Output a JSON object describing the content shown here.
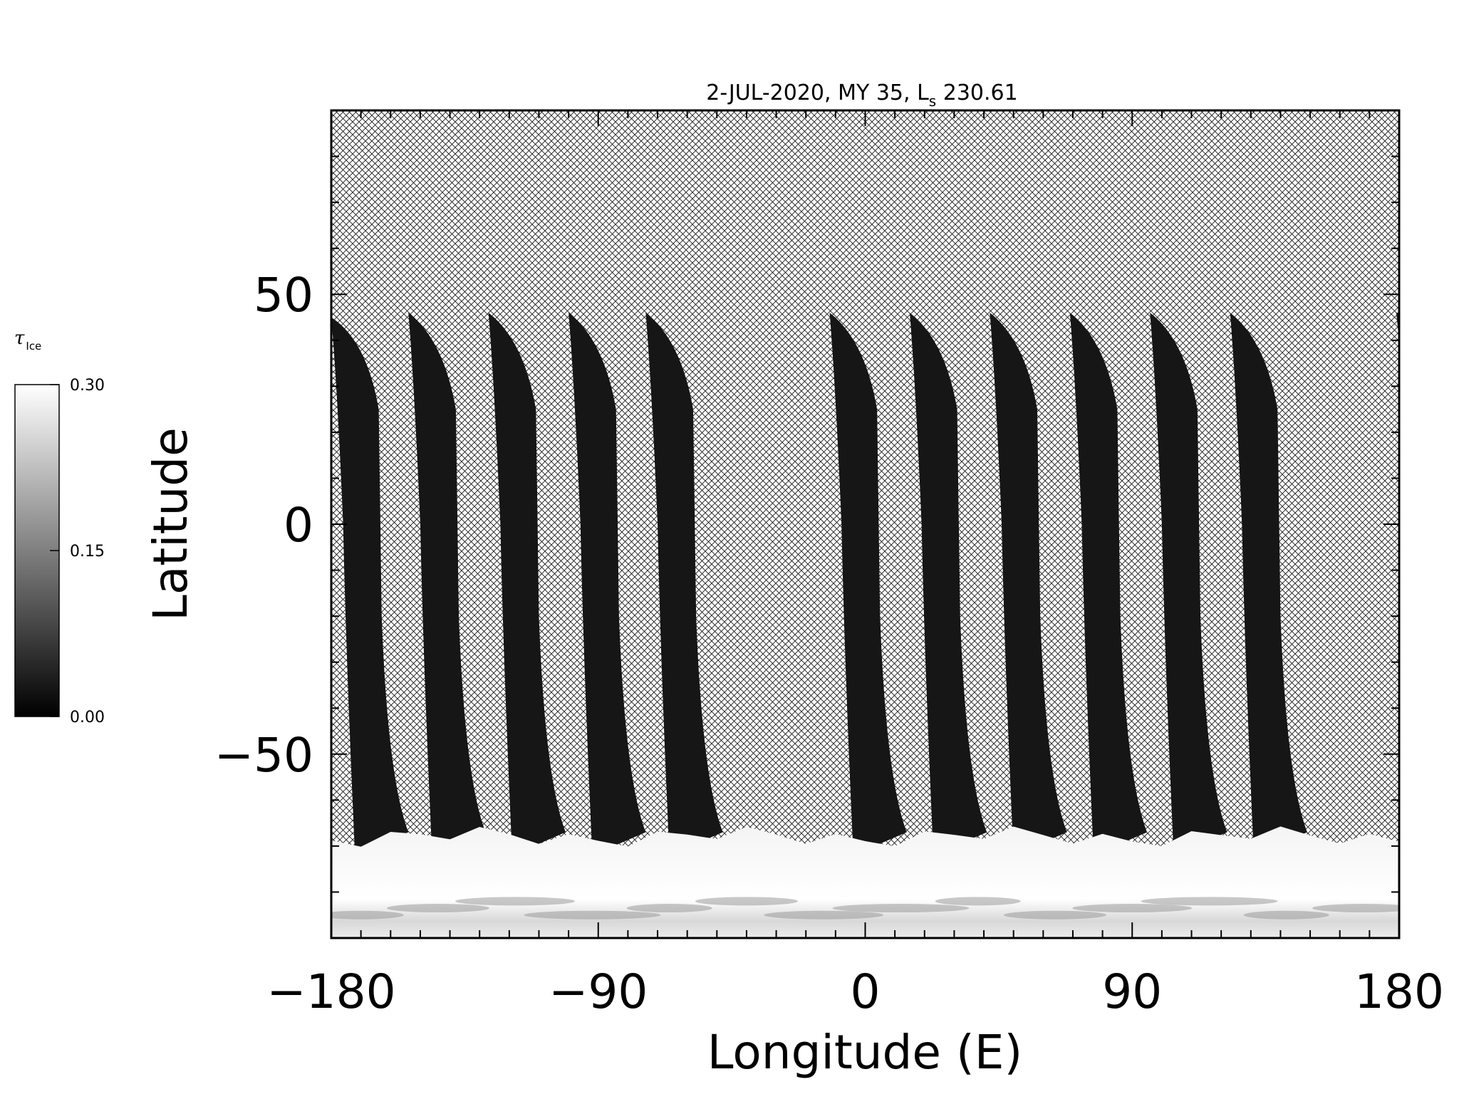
{
  "chart_data": {
    "type": "heatmap",
    "title": {
      "main": "2-JUL-2020, MY 35,  L",
      "sub": "s",
      "value": " 230.61"
    },
    "xlabel": "Longitude (E)",
    "ylabel": "Latitude",
    "xlim": [
      -180,
      180
    ],
    "ylim": [
      -90,
      90
    ],
    "x_ticks": [
      -180,
      -90,
      0,
      90,
      180
    ],
    "x_tick_labels": [
      "−180",
      "−90",
      "0",
      "90",
      "180"
    ],
    "y_ticks": [
      -50,
      0,
      50
    ],
    "y_tick_labels": [
      "−50",
      "0",
      "50"
    ],
    "colorbar": {
      "title": "τ",
      "title_sub": "Ice",
      "min": 0.0,
      "max": 0.3,
      "ticks": [
        0.0,
        0.15,
        0.3
      ],
      "tick_labels": [
        "0.00",
        "0.15",
        "0.30"
      ],
      "colormap": "grayscale",
      "low_color": "#000000",
      "high_color": "#ffffff"
    },
    "no_data_fill": "crosshatch",
    "swaths": [
      {
        "lon_north": -180,
        "lon_south": -169,
        "lat_north": 45
      },
      {
        "lon_north": -154,
        "lon_south": -142,
        "lat_north": 46
      },
      {
        "lon_north": -127,
        "lon_south": -115,
        "lat_north": 46
      },
      {
        "lon_north": -100,
        "lon_south": -88,
        "lat_north": 46
      },
      {
        "lon_north": -74,
        "lon_south": -62,
        "lat_north": 46
      },
      {
        "lon_north": -12,
        "lon_south": 0,
        "lat_north": 46
      },
      {
        "lon_north": 15,
        "lon_south": 27,
        "lat_north": 46
      },
      {
        "lon_north": 42,
        "lon_south": 54,
        "lat_north": 46
      },
      {
        "lon_north": 69,
        "lon_south": 81,
        "lat_north": 46
      },
      {
        "lon_north": 96,
        "lon_south": 108,
        "lat_north": 46
      },
      {
        "lon_north": 123,
        "lon_south": 135,
        "lat_north": 46
      }
    ],
    "south_cap": {
      "lat_top": -68,
      "lat_bottom": -88,
      "tau": 0.3
    }
  }
}
